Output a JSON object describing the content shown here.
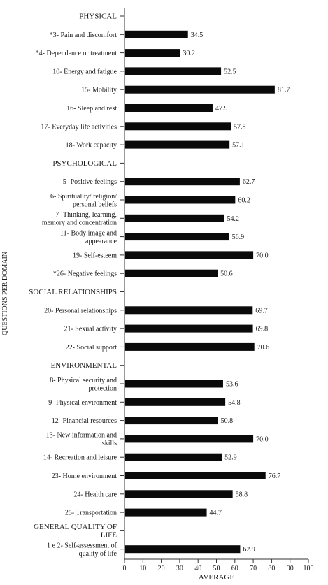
{
  "chart_data": {
    "type": "bar",
    "orientation": "horizontal",
    "xlabel": "AVERAGE",
    "ylabel": "QUESTIONS PER DOMAIN",
    "xlim": [
      0,
      100
    ],
    "xticks": [
      0,
      10,
      20,
      30,
      40,
      50,
      60,
      70,
      80,
      90,
      100
    ],
    "bar_color": "#0a0a0a",
    "grid": false,
    "rows": [
      {
        "label": [
          "PHYSICAL"
        ],
        "header": true
      },
      {
        "label": [
          "*3- Pain and discomfort"
        ],
        "value": 34.5
      },
      {
        "label": [
          "*4- Dependence or treatment"
        ],
        "value": 30.2
      },
      {
        "label": [
          "10- Energy and fatigue"
        ],
        "value": 52.5
      },
      {
        "label": [
          "15- Mobility"
        ],
        "value": 81.7
      },
      {
        "label": [
          "16- Sleep and rest"
        ],
        "value": 47.9
      },
      {
        "label": [
          "17- Everyday life activities"
        ],
        "value": 57.8
      },
      {
        "label": [
          "18- Work capacity"
        ],
        "value": 57.1
      },
      {
        "label": [
          "PSYCHOLOGICAL"
        ],
        "header": true
      },
      {
        "label": [
          "5- Positive feelings"
        ],
        "value": 62.7
      },
      {
        "label": [
          "6- Spirituality/ religion/",
          "personal beliefs"
        ],
        "value": 60.2
      },
      {
        "label": [
          "7- Thinking, learning,",
          "memory and concentration"
        ],
        "value": 54.2
      },
      {
        "label": [
          "11- Body image and",
          "appearance"
        ],
        "value": 56.9
      },
      {
        "label": [
          "19- Self-esteem"
        ],
        "value": 70.0
      },
      {
        "label": [
          "*26- Negative feelings"
        ],
        "value": 50.6
      },
      {
        "label": [
          "SOCIAL RELATIONSHIPS"
        ],
        "header": true
      },
      {
        "label": [
          "20- Personal relationships"
        ],
        "value": 69.7
      },
      {
        "label": [
          "21- Sexual activity"
        ],
        "value": 69.8
      },
      {
        "label": [
          "22- Social support"
        ],
        "value": 70.6
      },
      {
        "label": [
          "ENVIRONMENTAL"
        ],
        "header": true
      },
      {
        "label": [
          "8- Physical security and",
          "protection"
        ],
        "value": 53.6
      },
      {
        "label": [
          "9- Physical environment"
        ],
        "value": 54.8
      },
      {
        "label": [
          "12- Financial resources"
        ],
        "value": 50.8
      },
      {
        "label": [
          "13- New information and",
          "skills"
        ],
        "value": 70.0
      },
      {
        "label": [
          "14- Recreation and leisure"
        ],
        "value": 52.9
      },
      {
        "label": [
          "23- Home environment"
        ],
        "value": 76.7
      },
      {
        "label": [
          "24- Health care"
        ],
        "value": 58.8
      },
      {
        "label": [
          "25- Transportation"
        ],
        "value": 44.7
      },
      {
        "label": [
          "GENERAL QUALITY OF",
          "LIFE"
        ],
        "header": true
      },
      {
        "label": [
          "1 e 2- Self-assessment of",
          "quality of life"
        ],
        "value": 62.9
      }
    ]
  }
}
